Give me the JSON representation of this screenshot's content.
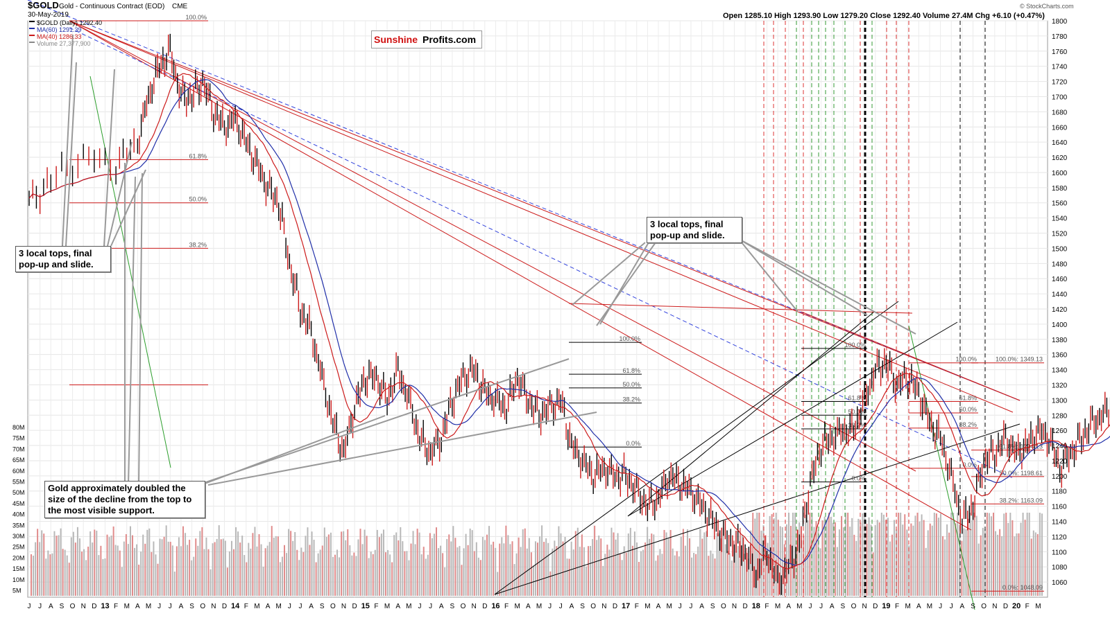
{
  "header": {
    "symbol": "$GOLD",
    "name": "Gold - Continuous Contract (EOD)",
    "exchange": "CME",
    "date": "30-May-2019",
    "watermark": "© StockCharts.com",
    "ohlc": "Open 1285.10  High 1293.90  Low 1279.20  Close 1292.40  Volume 27.4M  Chg +6.10 (+0.47%)"
  },
  "legend": [
    {
      "label": "$GOLD (Daily) 1292.40",
      "color": "#000000"
    },
    {
      "label": "MA(60) 1291.39",
      "color": "#1f2ea8"
    },
    {
      "label": "MA(40) 1286.33",
      "color": "#cc1a1a"
    },
    {
      "label": "Volume 27,377,900",
      "color": "#888888"
    }
  ],
  "logo": {
    "part1": "Sunshine",
    "part2": "Profits.com"
  },
  "annotations": [
    {
      "id": "left",
      "text": "3 local tops, final pop-up and slide."
    },
    {
      "id": "mid",
      "text": "3 local tops, final pop-up and slide."
    },
    {
      "id": "bottom",
      "text": "Gold approximately doubled the size of the decline from the top to the most visible support."
    }
  ],
  "chart_data": {
    "type": "line",
    "price_axis": {
      "min": 1040,
      "max": 1800,
      "ticks": [
        1060,
        1080,
        1100,
        1120,
        1140,
        1160,
        1180,
        1200,
        1220,
        1240,
        1260,
        1280,
        1300,
        1320,
        1340,
        1360,
        1380,
        1400,
        1420,
        1440,
        1460,
        1480,
        1500,
        1520,
        1540,
        1560,
        1580,
        1600,
        1620,
        1640,
        1660,
        1680,
        1700,
        1720,
        1740,
        1760,
        1780,
        1800
      ]
    },
    "volume_axis": {
      "labels": [
        "80M",
        "75M",
        "70M",
        "65M",
        "60M",
        "55M",
        "50M",
        "45M",
        "40M",
        "35M",
        "30M",
        "25M",
        "20M",
        "15M",
        "10M",
        "5M"
      ]
    },
    "time_axis": [
      "J",
      "J",
      "A",
      "S",
      "O",
      "N",
      "D",
      "13",
      "F",
      "M",
      "A",
      "M",
      "J",
      "J",
      "A",
      "S",
      "O",
      "N",
      "D",
      "14",
      "F",
      "M",
      "A",
      "M",
      "J",
      "J",
      "A",
      "S",
      "O",
      "N",
      "D",
      "15",
      "F",
      "M",
      "A",
      "M",
      "J",
      "J",
      "A",
      "S",
      "O",
      "N",
      "D",
      "16",
      "F",
      "M",
      "A",
      "M",
      "J",
      "J",
      "A",
      "S",
      "O",
      "N",
      "D",
      "17",
      "F",
      "M",
      "A",
      "M",
      "J",
      "J",
      "A",
      "S",
      "O",
      "N",
      "D",
      "18",
      "F",
      "M",
      "A",
      "M",
      "J",
      "J",
      "A",
      "S",
      "O",
      "N",
      "D",
      "19",
      "F",
      "M",
      "A",
      "M",
      "J",
      "J",
      "A",
      "S",
      "O",
      "N",
      "D",
      "20",
      "F",
      "M"
    ],
    "price_path": [
      [
        0,
        1560
      ],
      [
        2,
        1590
      ],
      [
        5,
        1620
      ],
      [
        8,
        1610
      ],
      [
        10,
        1640
      ],
      [
        11,
        1700
      ],
      [
        12,
        1740
      ],
      [
        13,
        1760
      ],
      [
        14,
        1700
      ],
      [
        15,
        1700
      ],
      [
        16,
        1720
      ],
      [
        17,
        1680
      ],
      [
        18,
        1660
      ],
      [
        19,
        1670
      ],
      [
        20,
        1640
      ],
      [
        21,
        1610
      ],
      [
        22,
        1580
      ],
      [
        23,
        1560
      ],
      [
        24,
        1480
      ],
      [
        25,
        1420
      ],
      [
        26,
        1390
      ],
      [
        27,
        1330
      ],
      [
        28,
        1270
      ],
      [
        29,
        1230
      ],
      [
        30,
        1290
      ],
      [
        31,
        1330
      ],
      [
        32,
        1330
      ],
      [
        33,
        1300
      ],
      [
        34,
        1340
      ],
      [
        35,
        1300
      ],
      [
        36,
        1250
      ],
      [
        37,
        1230
      ],
      [
        38,
        1250
      ],
      [
        39,
        1300
      ],
      [
        40,
        1330
      ],
      [
        41,
        1340
      ],
      [
        42,
        1310
      ],
      [
        43,
        1300
      ],
      [
        44,
        1290
      ],
      [
        45,
        1330
      ],
      [
        46,
        1300
      ],
      [
        47,
        1280
      ],
      [
        48,
        1290
      ],
      [
        49,
        1300
      ],
      [
        50,
        1240
      ],
      [
        51,
        1220
      ],
      [
        52,
        1200
      ],
      [
        53,
        1210
      ],
      [
        54,
        1200
      ],
      [
        55,
        1200
      ],
      [
        56,
        1180
      ],
      [
        57,
        1160
      ],
      [
        58,
        1170
      ],
      [
        59,
        1200
      ],
      [
        60,
        1190
      ],
      [
        61,
        1180
      ],
      [
        62,
        1160
      ],
      [
        63,
        1140
      ],
      [
        64,
        1120
      ],
      [
        65,
        1110
      ],
      [
        66,
        1100
      ],
      [
        67,
        1070
      ],
      [
        68,
        1100
      ],
      [
        69,
        1060
      ],
      [
        70,
        1080
      ],
      [
        71,
        1110
      ],
      [
        72,
        1190
      ],
      [
        73,
        1240
      ],
      [
        74,
        1250
      ],
      [
        75,
        1260
      ],
      [
        76,
        1260
      ],
      [
        77,
        1300
      ],
      [
        78,
        1340
      ],
      [
        79,
        1350
      ],
      [
        80,
        1320
      ],
      [
        81,
        1330
      ],
      [
        82,
        1310
      ],
      [
        83,
        1270
      ],
      [
        84,
        1250
      ],
      [
        85,
        1200
      ],
      [
        86,
        1140
      ],
      [
        87,
        1160
      ],
      [
        88,
        1220
      ],
      [
        89,
        1230
      ],
      [
        90,
        1250
      ],
      [
        91,
        1230
      ],
      [
        92,
        1240
      ],
      [
        93,
        1260
      ],
      [
        94,
        1250
      ],
      [
        95,
        1210
      ],
      [
        96,
        1230
      ],
      [
        97,
        1250
      ],
      [
        98,
        1270
      ],
      [
        99,
        1280
      ],
      [
        100,
        1300
      ],
      [
        101,
        1280
      ],
      [
        102,
        1270
      ],
      [
        103,
        1280
      ],
      [
        104,
        1300
      ],
      [
        105,
        1320
      ],
      [
        106,
        1340
      ],
      [
        107,
        1330
      ],
      [
        108,
        1320
      ],
      [
        109,
        1300
      ],
      [
        110,
        1280
      ],
      [
        111,
        1260
      ],
      [
        112,
        1240
      ],
      [
        113,
        1210
      ],
      [
        114,
        1200
      ],
      [
        115,
        1190
      ],
      [
        116,
        1200
      ],
      [
        117,
        1220
      ],
      [
        118,
        1240
      ],
      [
        119,
        1280
      ],
      [
        120,
        1300
      ],
      [
        121,
        1320
      ],
      [
        122,
        1310
      ],
      [
        123,
        1300
      ],
      [
        124,
        1280
      ],
      [
        125,
        1280
      ],
      [
        126,
        1292
      ]
    ]
  }
}
